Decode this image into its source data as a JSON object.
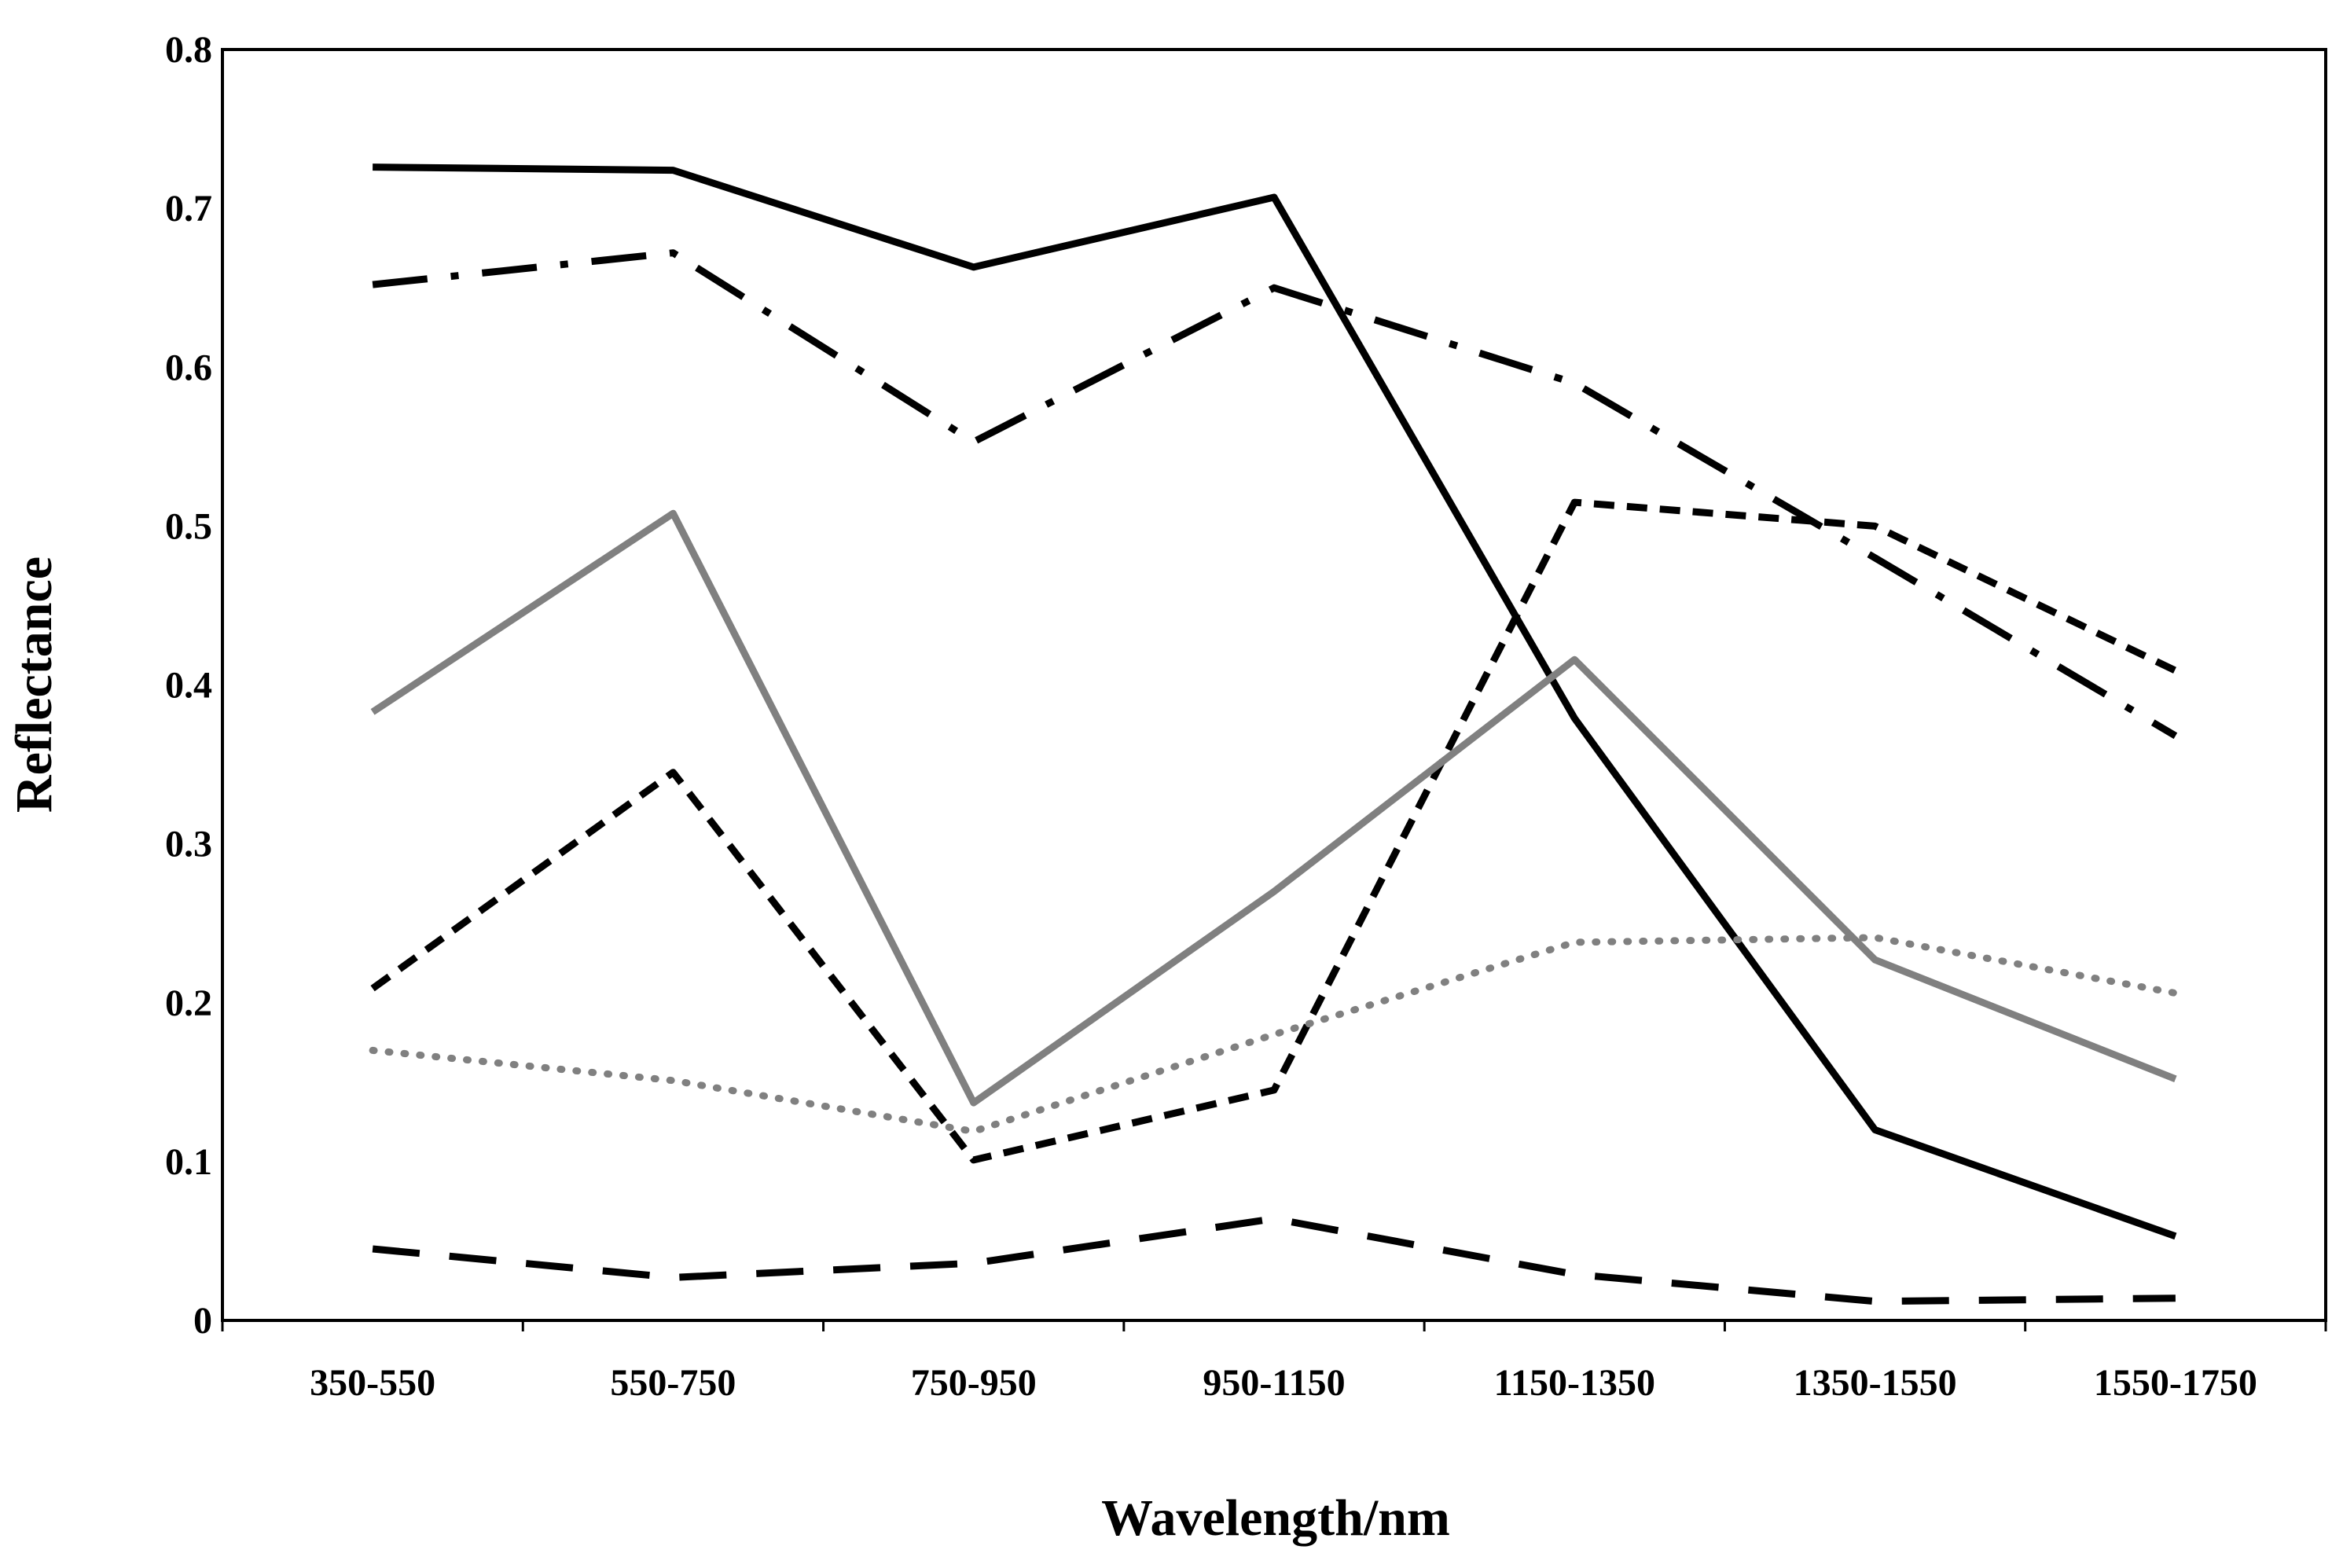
{
  "chart_data": {
    "type": "line",
    "title": "",
    "xlabel": "Wavelength/nm",
    "ylabel": "Reflectance",
    "categories": [
      "350-550",
      "550-750",
      "750-950",
      "950-1150",
      "1150-1350",
      "1350-1550",
      "1550-1750"
    ],
    "ylim": [
      0,
      0.8
    ],
    "yticks": [
      "0",
      "0.1",
      "0.2",
      "0.3",
      "0.4",
      "0.5",
      "0.6",
      "0.7",
      "0.8"
    ],
    "grid": false,
    "legend": "none",
    "series": [
      {
        "name": "solid black",
        "color": "#000000",
        "style": "solid",
        "values": [
          0.726,
          0.724,
          0.663,
          0.707,
          0.379,
          0.12,
          0.053
        ]
      },
      {
        "name": "dash-dot black",
        "color": "#000000",
        "style": "dashdot",
        "values": [
          0.652,
          0.672,
          0.553,
          0.65,
          0.59,
          0.48,
          0.368
        ]
      },
      {
        "name": "short-dash black",
        "color": "#000000",
        "style": "dash",
        "values": [
          0.209,
          0.345,
          0.101,
          0.145,
          0.515,
          0.5,
          0.409
        ]
      },
      {
        "name": "solid gray",
        "color": "#808080",
        "style": "solid",
        "values": [
          0.383,
          0.508,
          0.137,
          0.27,
          0.416,
          0.227,
          0.152
        ]
      },
      {
        "name": "dotted gray",
        "color": "#808080",
        "style": "dot",
        "values": [
          0.17,
          0.151,
          0.119,
          0.18,
          0.238,
          0.241,
          0.206
        ]
      },
      {
        "name": "long-dash black",
        "color": "#000000",
        "style": "longdash",
        "values": [
          0.045,
          0.027,
          0.036,
          0.064,
          0.029,
          0.012,
          0.014
        ]
      }
    ]
  }
}
